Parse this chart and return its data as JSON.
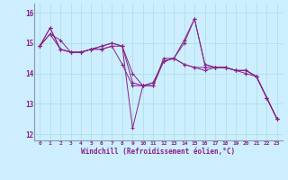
{
  "title": "",
  "xlabel": "Windchill (Refroidissement éolien,°C)",
  "ylabel": "",
  "background_color": "#cceeff",
  "line_color": "#882288",
  "xlim": [
    -0.5,
    23.5
  ],
  "ylim": [
    11.8,
    16.3
  ],
  "yticks": [
    12,
    13,
    14,
    15,
    16
  ],
  "xticks": [
    0,
    1,
    2,
    3,
    4,
    5,
    6,
    7,
    8,
    9,
    10,
    11,
    12,
    13,
    14,
    15,
    16,
    17,
    18,
    19,
    20,
    21,
    22,
    23
  ],
  "series": [
    [
      14.9,
      15.5,
      14.8,
      14.7,
      14.7,
      14.8,
      14.8,
      14.9,
      14.3,
      13.6,
      13.6,
      13.7,
      14.4,
      14.5,
      14.3,
      14.2,
      14.2,
      14.2,
      14.2,
      14.1,
      14.1,
      13.9,
      13.2,
      12.5
    ],
    [
      14.9,
      15.3,
      15.1,
      14.7,
      14.7,
      14.8,
      14.9,
      15.0,
      14.9,
      14.0,
      13.6,
      13.6,
      14.4,
      14.5,
      15.0,
      15.8,
      14.3,
      14.2,
      14.2,
      14.1,
      14.1,
      13.9,
      13.2,
      12.5
    ],
    [
      14.9,
      15.5,
      14.8,
      14.7,
      14.7,
      14.8,
      14.8,
      14.9,
      14.9,
      12.2,
      13.6,
      13.7,
      14.4,
      14.5,
      14.3,
      14.2,
      14.1,
      14.2,
      14.2,
      14.1,
      14.0,
      13.9,
      13.2,
      12.5
    ],
    [
      14.9,
      15.3,
      14.8,
      14.7,
      14.7,
      14.8,
      14.9,
      15.0,
      14.9,
      13.7,
      13.6,
      13.6,
      14.5,
      14.5,
      15.1,
      15.8,
      14.3,
      14.2,
      14.2,
      14.1,
      14.1,
      13.9,
      13.2,
      12.5
    ]
  ]
}
